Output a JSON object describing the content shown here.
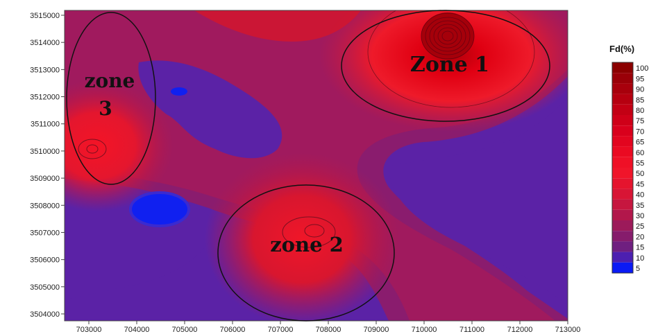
{
  "map": {
    "type": "heatmap",
    "x_ticks": [
      "703000",
      "704000",
      "705000",
      "706000",
      "707000",
      "708000",
      "709000",
      "710000",
      "711000",
      "712000",
      "713000"
    ],
    "y_ticks": [
      "3515000",
      "3514000",
      "3513000",
      "3512000",
      "3511000",
      "3510000",
      "3509000",
      "3508000",
      "3507000",
      "3506000",
      "3505000",
      "3504000"
    ],
    "zones": [
      {
        "label": "Zone 1"
      },
      {
        "label": "zone 2"
      },
      {
        "label": "zone\n3",
        "line1": "zone",
        "line2": "3"
      }
    ],
    "legend": {
      "title": "Fd(%)",
      "levels": [
        "100",
        "95",
        "90",
        "85",
        "80",
        "75",
        "70",
        "65",
        "60",
        "55",
        "50",
        "45",
        "40",
        "35",
        "30",
        "25",
        "20",
        "15",
        "10",
        "5"
      ],
      "colors": [
        "#8b0000",
        "#9a0008",
        "#a8000c",
        "#b60010",
        "#c30014",
        "#cf0018",
        "#d9001c",
        "#e2051f",
        "#ea0a22",
        "#ef1026",
        "#f0152a",
        "#e5142e",
        "#d81535",
        "#c6163f",
        "#b2174b",
        "#9c1a5a",
        "#861c6c",
        "#6f1f80",
        "#4c1fb0",
        "#0a1af5"
      ]
    },
    "colors": {
      "background_low": "#5a22a8",
      "mid": "#a51c5c",
      "high": "#e0162e",
      "blue_spot": "#1020f0"
    }
  }
}
